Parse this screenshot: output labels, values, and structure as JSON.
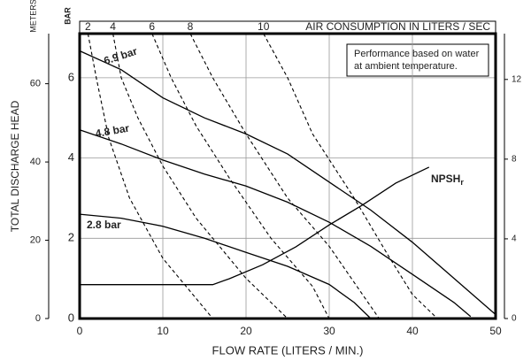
{
  "chart_data": {
    "type": "line",
    "x_label": "FLOW RATE (LITERS / MIN.)",
    "y_label": "TOTAL DISCHARGE HEAD",
    "y_meters_unit": "METERS",
    "y_bar_unit": "BAR",
    "x2_label": "AIR CONSUMPTION IN LITERS / SEC",
    "note": [
      "Performance based on water",
      "at ambient temperature."
    ],
    "xlim": [
      0,
      50
    ],
    "xticks": [
      0,
      10,
      20,
      30,
      40,
      50
    ],
    "ylim": [
      0,
      7.1
    ],
    "yticks": [
      0,
      2,
      4,
      6
    ],
    "y_meters_lim": [
      0,
      72.8
    ],
    "y_meters_ticks": [
      0,
      20,
      40,
      60
    ],
    "y2lim": [
      0,
      14.3
    ],
    "y2ticks": [
      0,
      4,
      8,
      12
    ],
    "x2ticks": [
      2,
      4,
      6,
      8,
      10
    ],
    "grid": true,
    "series": [
      {
        "name": "6.9 bar",
        "color": "#000000",
        "style": "solid",
        "x": [
          0,
          5,
          10,
          15,
          20,
          25,
          30,
          35,
          40,
          45,
          50
        ],
        "values": [
          6.67,
          6.2,
          5.5,
          5.0,
          4.6,
          4.1,
          3.4,
          2.7,
          1.9,
          1.0,
          0.1
        ]
      },
      {
        "name": "4.8 bar",
        "color": "#000000",
        "style": "solid",
        "x": [
          0,
          5,
          10,
          15,
          20,
          25,
          30,
          35,
          40,
          45,
          47
        ],
        "values": [
          4.7,
          4.35,
          3.95,
          3.6,
          3.3,
          2.9,
          2.4,
          1.8,
          1.1,
          0.4,
          0.05
        ]
      },
      {
        "name": "2.8 bar",
        "color": "#000000",
        "style": "solid",
        "x": [
          0,
          5,
          10,
          15,
          20,
          25,
          30,
          33,
          35
        ],
        "values": [
          2.6,
          2.5,
          2.3,
          2.0,
          1.65,
          1.3,
          0.85,
          0.4,
          0
        ]
      },
      {
        "name": "NPSH",
        "subscript": "r",
        "axis": "y2",
        "color": "#000000",
        "style": "solid",
        "x": [
          0,
          16,
          18,
          22,
          26,
          30,
          34,
          38,
          42
        ],
        "values": [
          1.7,
          1.7,
          2.0,
          2.7,
          3.6,
          4.7,
          5.7,
          6.8,
          7.6
        ]
      },
      {
        "color": "#000000",
        "style": "dashed",
        "x": [
          1,
          2,
          3.5,
          6,
          10,
          14,
          16
        ],
        "values": [
          7.1,
          6,
          4.5,
          3,
          1.5,
          0.5,
          0
        ]
      },
      {
        "color": "#000000",
        "style": "dashed",
        "x": [
          4,
          5,
          7,
          10,
          14,
          20,
          25
        ],
        "values": [
          7.1,
          6,
          5,
          3.8,
          2.5,
          1,
          0
        ]
      },
      {
        "color": "#000000",
        "style": "dashed",
        "x": [
          8.7,
          11,
          14,
          18,
          23,
          28,
          30
        ],
        "values": [
          7.1,
          6,
          4.8,
          3.5,
          2,
          0.8,
          0
        ]
      },
      {
        "color": "#000000",
        "style": "dashed",
        "x": [
          13.3,
          16,
          20,
          25,
          30,
          34,
          36
        ],
        "values": [
          7.1,
          6,
          4.6,
          3,
          1.8,
          0.6,
          0
        ]
      },
      {
        "color": "#000000",
        "style": "dashed",
        "x": [
          22.1,
          25,
          28,
          33,
          37,
          40,
          43
        ],
        "values": [
          7.1,
          6,
          4.6,
          3,
          1.6,
          0.6,
          0
        ]
      }
    ]
  }
}
